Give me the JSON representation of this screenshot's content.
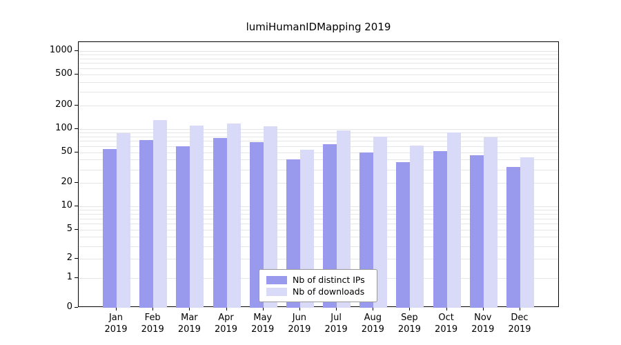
{
  "chart_data": {
    "type": "bar",
    "title": "lumiHumanIDMapping 2019",
    "categories": [
      "Jan 2019",
      "Feb 2019",
      "Mar 2019",
      "Apr 2019",
      "May 2019",
      "Jun 2019",
      "Jul 2019",
      "Aug 2019",
      "Sep 2019",
      "Oct 2019",
      "Nov 2019",
      "Dec 2019"
    ],
    "series": [
      {
        "name": "Nb of distinct IPs",
        "color": "#9999ee",
        "values": [
          55,
          72,
          60,
          76,
          68,
          40,
          63,
          50,
          37,
          52,
          46,
          32
        ]
      },
      {
        "name": "Nb of downloads",
        "color": "#d9d9f8",
        "values": [
          88,
          130,
          110,
          118,
          107,
          54,
          96,
          79,
          61,
          90,
          77,
          43
        ]
      }
    ],
    "yscale": "symlog",
    "y_ticks": [
      0,
      1,
      2,
      5,
      10,
      20,
      50,
      100,
      200,
      500,
      1000
    ],
    "ylim": [
      0,
      1300
    ],
    "xlabel": "",
    "ylabel": "",
    "grid": true,
    "legend_position": "bottom-center"
  },
  "colors": {
    "grid": "#e5e5e5",
    "axis": "#000000",
    "background": "#ffffff"
  }
}
